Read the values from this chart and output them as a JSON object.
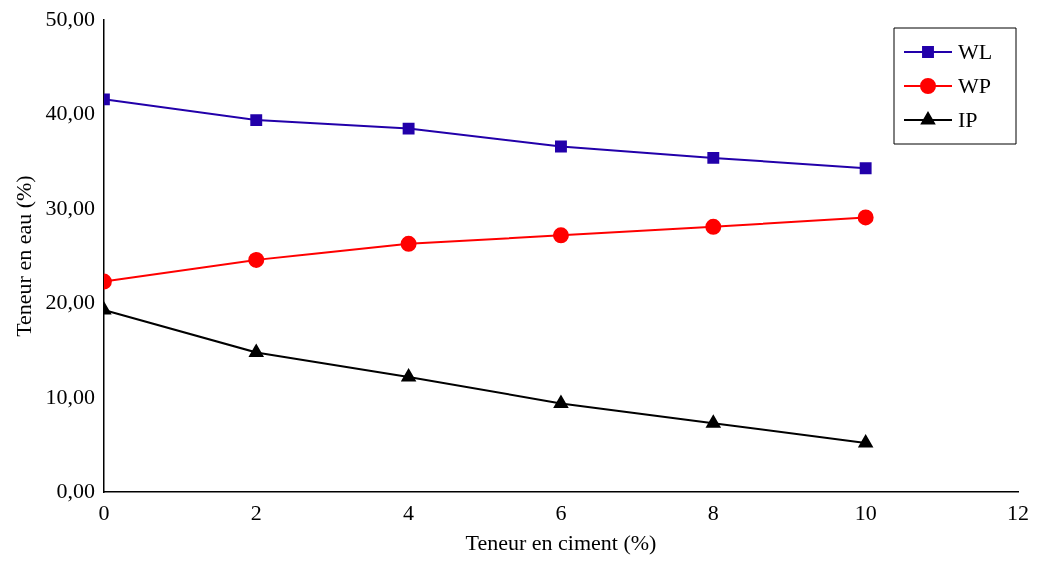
{
  "chart_data": {
    "type": "line",
    "xlabel": "Teneur en ciment (%)",
    "ylabel": "Teneur en eau (%)",
    "x": [
      0,
      2,
      4,
      6,
      8,
      10
    ],
    "series": [
      {
        "name": "WL",
        "color": "#2200aa",
        "marker": "square",
        "values": [
          41.6,
          39.4,
          38.5,
          36.6,
          35.4,
          34.3
        ]
      },
      {
        "name": "WP",
        "color": "#ff0000",
        "marker": "circle",
        "values": [
          22.3,
          24.6,
          26.3,
          27.2,
          28.1,
          29.1
        ]
      },
      {
        "name": "IP",
        "color": "#000000",
        "marker": "triangle",
        "values": [
          19.3,
          14.8,
          12.2,
          9.4,
          7.3,
          5.2
        ]
      }
    ],
    "xlim": [
      0,
      12
    ],
    "xticks": [
      0,
      2,
      4,
      6,
      8,
      10,
      12
    ],
    "ylim": [
      0,
      50
    ],
    "yticks": [
      {
        "value": 0,
        "label": "0,00"
      },
      {
        "value": 10,
        "label": "10,00"
      },
      {
        "value": 20,
        "label": "20,00"
      },
      {
        "value": 30,
        "label": "30,00"
      },
      {
        "value": 40,
        "label": "40,00"
      },
      {
        "value": 50,
        "label": "50,00"
      }
    ],
    "grid": false,
    "legend": "top right",
    "line_style": "solid"
  }
}
